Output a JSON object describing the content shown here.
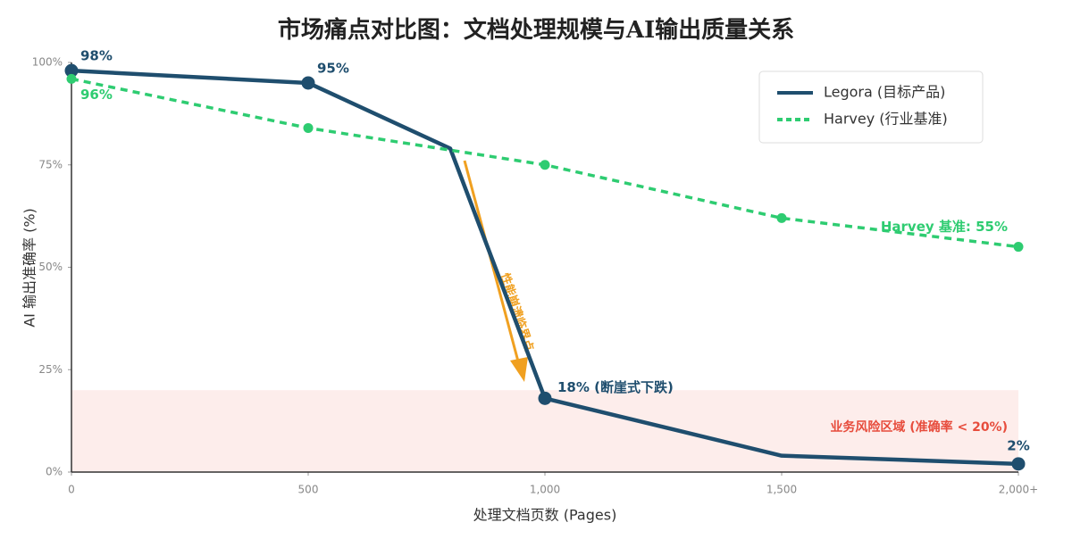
{
  "chart_data": {
    "type": "line",
    "title": "市场痛点对比图：文档处理规模与AI输出质量关系",
    "x_label": "处理文档页数 (Pages)",
    "y_label": "AI 输出准确率 (%)",
    "xlim": [
      0,
      2000
    ],
    "xticks": [
      0,
      500,
      {
        "value": 1000,
        "label": "1,000"
      },
      {
        "value": 1500,
        "label": "1,500"
      },
      {
        "value": 2000,
        "label": "2,000+"
      }
    ],
    "ylim": [
      0,
      100
    ],
    "yticks": [
      {
        "value": 0,
        "label": "0%"
      },
      {
        "value": 25,
        "label": "25%"
      },
      {
        "value": 50,
        "label": "50%"
      },
      {
        "value": 75,
        "label": "75%"
      },
      {
        "value": 100,
        "label": "100%"
      }
    ],
    "legend": "upper right",
    "series": [
      {
        "name": "Legora (目标产品)",
        "color": "#1f4e6e",
        "dash": "solid",
        "x": [
          0,
          500,
          800,
          1000,
          1500,
          2000
        ],
        "values": [
          98,
          95,
          79,
          18,
          4,
          2
        ],
        "markers": [
          true,
          true,
          false,
          true,
          false,
          true
        ],
        "value_labels": [
          "98%",
          "95%",
          null,
          "18% (断崖式下跌)",
          null,
          "2%"
        ]
      },
      {
        "name": "Harvey (行业基准)",
        "color": "#2ecc71",
        "dash": "dashed",
        "x": [
          0,
          500,
          1000,
          1500,
          2000
        ],
        "values": [
          96,
          84,
          75,
          62,
          55
        ],
        "markers": [
          true,
          true,
          true,
          true,
          true
        ],
        "value_labels": [
          "96%",
          null,
          null,
          null,
          "Harvey 基准: 55%"
        ]
      }
    ],
    "risk_zone": {
      "range": [
        0,
        20
      ],
      "label": "业务风险区域 (准确率 < 20%)",
      "color": "#e74c3c"
    },
    "arrow_annotation": {
      "text": "性能崩溃临界点",
      "color": "#f0a020"
    }
  }
}
